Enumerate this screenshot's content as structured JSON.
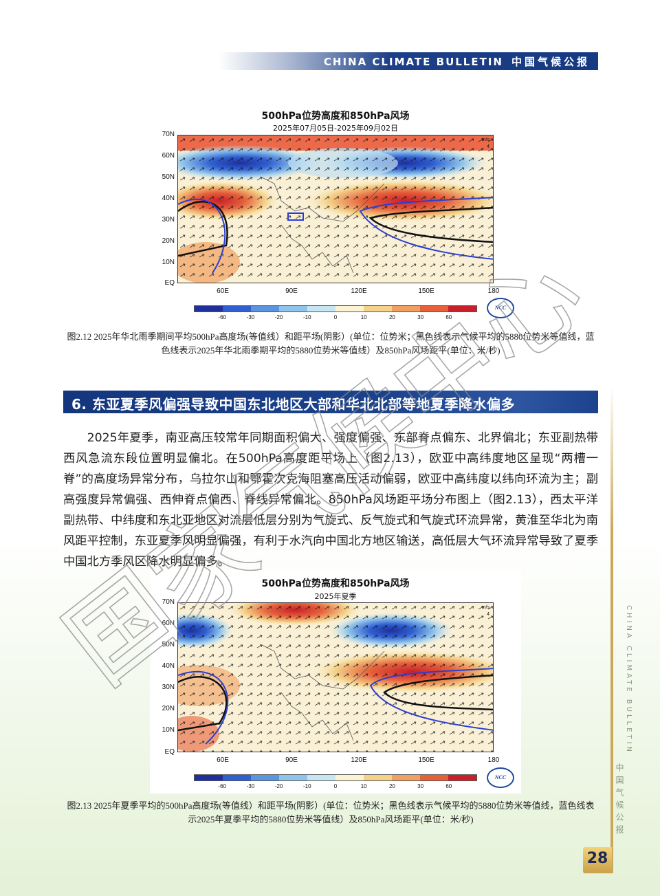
{
  "header": {
    "en": "CHINA CLIMATE BULLETIN",
    "cn": "中国气候公报"
  },
  "figure1": {
    "title": "500hPa位势高度和850hPa风场",
    "subtitle": "2025年07月05日-2025年09月02日",
    "y_ticks": [
      "70N",
      "60N",
      "50N",
      "40N",
      "30N",
      "20N",
      "10N",
      "EQ"
    ],
    "x_ticks": [
      "60E",
      "90E",
      "120E",
      "150E",
      "180"
    ],
    "wind_unit": "m/s",
    "wind_ref": "4",
    "colorbar_labels": [
      "-60",
      "-30",
      "-20",
      "-10",
      "0",
      "10",
      "20",
      "30",
      "60"
    ],
    "logo": "NCC",
    "caption": "图2.12  2025年华北雨季期间平均500hPa高度场(等值线）和距平场(阴影）(单位：位势米；黑色线表示气候平均的5880位势米等值线，蓝色线表示2025年华北雨季期平均的5880位势米等值线）及850hPa风场距平(单位：米/秒)"
  },
  "section": {
    "title": "6. 东亚夏季风偏强导致中国东北地区大部和华北北部等地夏季降水偏多"
  },
  "body": {
    "paragraph": "2025年夏季，南亚高压较常年同期面积偏大、强度偏强、东部脊点偏东、北界偏北；东亚副热带西风急流东段位置明显偏北。在500hPa高度距平场上（图2.13），欧亚中高纬度地区呈现“两槽一脊”的高度场异常分布，乌拉尔山和鄂霍次克海阻塞高压活动偏弱，欧亚中高纬度以纬向环流为主；副高强度异常偏强、西伸脊点偏西、脊线异常偏北。850hPa风场距平场分布图上（图2.13），西太平洋副热带、中纬度和东北亚地区对流层低层分别为气旋式、反气旋式和气旋式环流异常，黄淮至华北为南风距平控制，东亚夏季风明显偏强，有利于水汽向中国北方地区输送，高低层大气环流异常导致了夏季中国北方季风区降水明显偏多。"
  },
  "figure2": {
    "title": "500hPa位势高度和850hPa风场",
    "subtitle": "2025年夏季",
    "y_ticks": [
      "70N",
      "60N",
      "50N",
      "40N",
      "30N",
      "20N",
      "10N",
      "EQ"
    ],
    "x_ticks": [
      "60E",
      "90E",
      "120E",
      "150E",
      "180"
    ],
    "wind_unit": "m/s",
    "wind_ref": "4",
    "colorbar_labels": [
      "-60",
      "-30",
      "-20",
      "-10",
      "0",
      "10",
      "20",
      "30",
      "60"
    ],
    "logo": "NCC",
    "caption": "图2.13  2025年夏季平均的500hPa高度场(等值线）和距平场(阴影）(单位：位势米；黑色线表示气候平均的5880位势米等值线，蓝色线表示2025年夏季平均的5880位势米等值线）及850hPa风场距平(单位：米/秒)"
  },
  "sidebar": {
    "en": "CHINA CLIMATE BULLETIN",
    "cn": "中国气候公报",
    "page_number": "28"
  },
  "watermark": "国家气候中心",
  "colors": {
    "header_blue": "#163a82",
    "section_blue": "#1c428d",
    "page_gold": "#c9a24a",
    "contour_blue": "#2a3fd0",
    "contour_black": "#111111"
  },
  "colorbar_colors": [
    "#1f2f9c",
    "#2f5fd0",
    "#5a95e0",
    "#8fc4ec",
    "#c6e6f4",
    "#fbf3d2",
    "#f5d28a",
    "#f0a060",
    "#e6603a",
    "#c8202a"
  ]
}
